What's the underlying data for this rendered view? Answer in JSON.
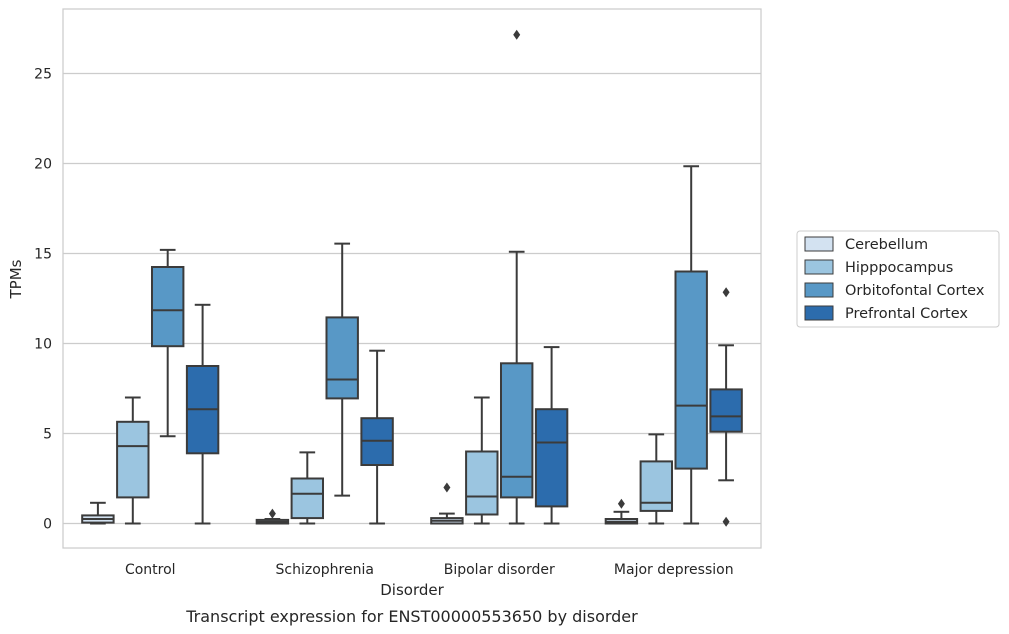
{
  "chart_data": {
    "type": "boxplot",
    "caption": "Transcript expression for ENST00000553650 by disorder",
    "xlabel": "Disorder",
    "ylabel": "TPMs",
    "ylim": [
      -1.3,
      28.5
    ],
    "yticks": [
      0,
      5,
      10,
      15,
      20,
      25
    ],
    "grid": "horizontal",
    "legend_position": "right",
    "categories": [
      "Control",
      "Schizophrenia",
      "Bipolar disorder",
      "Major depression"
    ],
    "series": [
      {
        "name": "Cerebellum",
        "color": "#d3e2f1",
        "boxes": [
          {
            "whislo": 0,
            "q1": 0.05,
            "med": 0.25,
            "q3": 0.45,
            "whishi": 1.15,
            "fliers": []
          },
          {
            "whislo": 0,
            "q1": 0.0,
            "med": 0.1,
            "q3": 0.2,
            "whishi": 0.25,
            "fliers": [
              0.55
            ]
          },
          {
            "whislo": 0,
            "q1": 0.0,
            "med": 0.15,
            "q3": 0.3,
            "whishi": 0.55,
            "fliers": [
              2.0
            ]
          },
          {
            "whislo": 0,
            "q1": 0.0,
            "med": 0.1,
            "q3": 0.25,
            "whishi": 0.65,
            "fliers": [
              1.1
            ]
          }
        ]
      },
      {
        "name": "Hipppocampus",
        "color": "#9bc5e0",
        "boxes": [
          {
            "whislo": 0,
            "q1": 1.45,
            "med": 4.3,
            "q3": 5.65,
            "whishi": 7.0,
            "fliers": []
          },
          {
            "whislo": 0,
            "q1": 0.3,
            "med": 1.65,
            "q3": 2.5,
            "whishi": 3.95,
            "fliers": []
          },
          {
            "whislo": 0,
            "q1": 0.5,
            "med": 1.5,
            "q3": 4.0,
            "whishi": 7.0,
            "fliers": []
          },
          {
            "whislo": 0,
            "q1": 0.7,
            "med": 1.15,
            "q3": 3.45,
            "whishi": 4.95,
            "fliers": []
          }
        ]
      },
      {
        "name": "Orbitofontal Cortex",
        "color": "#5898c6",
        "boxes": [
          {
            "whislo": 4.85,
            "q1": 9.85,
            "med": 11.85,
            "q3": 14.25,
            "whishi": 15.2,
            "fliers": []
          },
          {
            "whislo": 1.55,
            "q1": 6.95,
            "med": 8.0,
            "q3": 11.45,
            "whishi": 15.55,
            "fliers": []
          },
          {
            "whislo": 0,
            "q1": 1.45,
            "med": 2.6,
            "q3": 8.9,
            "whishi": 15.1,
            "fliers": [
              27.15
            ]
          },
          {
            "whislo": 0,
            "q1": 3.05,
            "med": 6.55,
            "q3": 14.0,
            "whishi": 19.85,
            "fliers": []
          }
        ]
      },
      {
        "name": "Prefrontal Cortex",
        "color": "#2c6cad",
        "boxes": [
          {
            "whislo": 0,
            "q1": 3.9,
            "med": 6.35,
            "q3": 8.75,
            "whishi": 12.15,
            "fliers": []
          },
          {
            "whislo": 0,
            "q1": 3.25,
            "med": 4.6,
            "q3": 5.85,
            "whishi": 9.6,
            "fliers": []
          },
          {
            "whislo": 0,
            "q1": 0.95,
            "med": 4.5,
            "q3": 6.35,
            "whishi": 9.8,
            "fliers": []
          },
          {
            "whislo": 2.4,
            "q1": 5.1,
            "med": 5.95,
            "q3": 7.45,
            "whishi": 9.9,
            "fliers": [
              12.85,
              0.1
            ]
          }
        ]
      }
    ]
  }
}
